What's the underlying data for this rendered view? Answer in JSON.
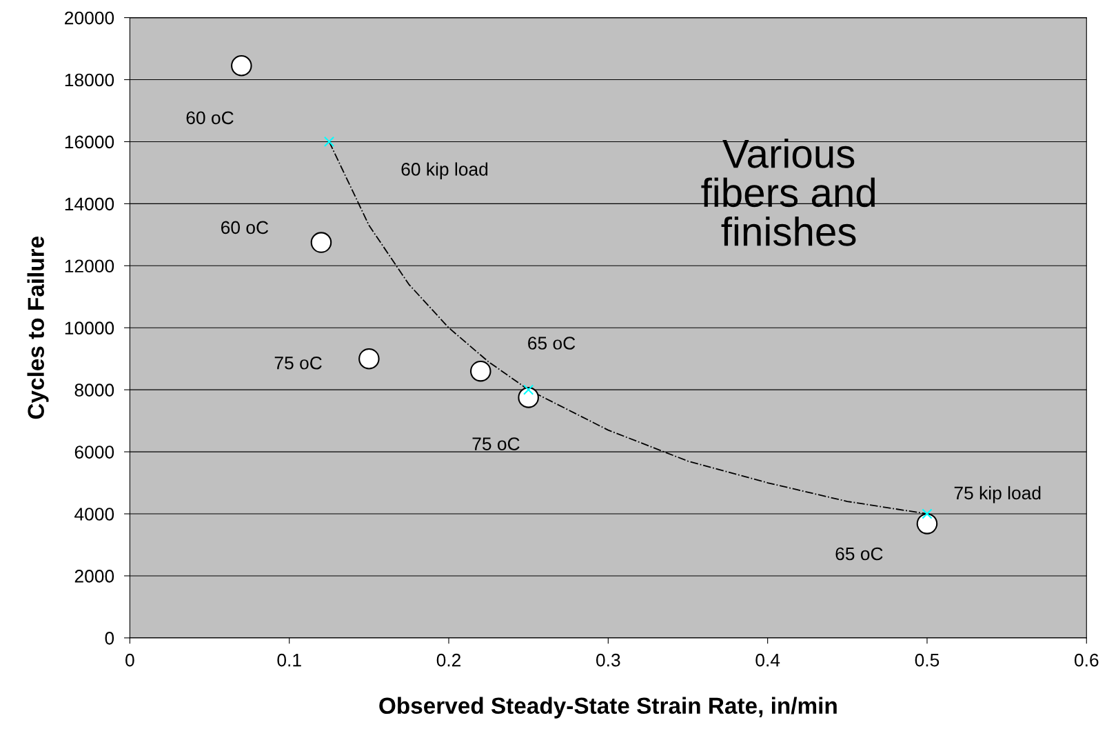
{
  "chart_data": {
    "type": "scatter",
    "xlabel": "Observed Steady-State Strain Rate, in/min",
    "ylabel": "Cycles to Failure",
    "xlim": [
      0,
      0.6
    ],
    "xticks": [
      0,
      0.1,
      0.2,
      0.3,
      0.4,
      0.5,
      0.6
    ],
    "ylim": [
      0,
      20000
    ],
    "yticks": [
      0,
      2000,
      4000,
      6000,
      8000,
      10000,
      12000,
      14000,
      16000,
      18000,
      20000
    ],
    "grid": "y",
    "series": [
      {
        "type": "scatter",
        "color": "#ffffff",
        "marker": "circle",
        "x": [
          0.07,
          0.12,
          0.15,
          0.22,
          0.25,
          0.5
        ],
        "values": [
          18450,
          12750,
          9000,
          8600,
          7750,
          3680
        ]
      },
      {
        "type": "line",
        "color": "#000000",
        "line_style": "dashed",
        "marker": "none",
        "x": [
          0.125,
          0.15,
          0.175,
          0.2,
          0.225,
          0.25,
          0.3,
          0.35,
          0.4,
          0.45,
          0.5
        ],
        "values": [
          16000,
          13300,
          11400,
          10000,
          8900,
          8000,
          6700,
          5700,
          5000,
          4400,
          4000
        ]
      },
      {
        "type": "scatter",
        "color": "#00ffff",
        "marker": "cross",
        "x": [
          0.125,
          0.25,
          0.5
        ],
        "values": [
          16000,
          8000,
          4000
        ]
      }
    ],
    "annotations": [
      {
        "text": "60 oC",
        "x": 0.07,
        "y": 18450
      },
      "60 kip load",
      {
        "text": "60 oC",
        "x": 0.12,
        "y": 12750
      },
      {
        "text": "75 oC",
        "x": 0.15,
        "y": 9000
      },
      "65 oC",
      {
        "text": "75 oC",
        "x": 0.25,
        "y": 7750
      },
      "75 kip load",
      {
        "text": "65 oC",
        "x": 0.5,
        "y": 3680
      },
      "Various\nfibers and\nfinishes"
    ]
  }
}
